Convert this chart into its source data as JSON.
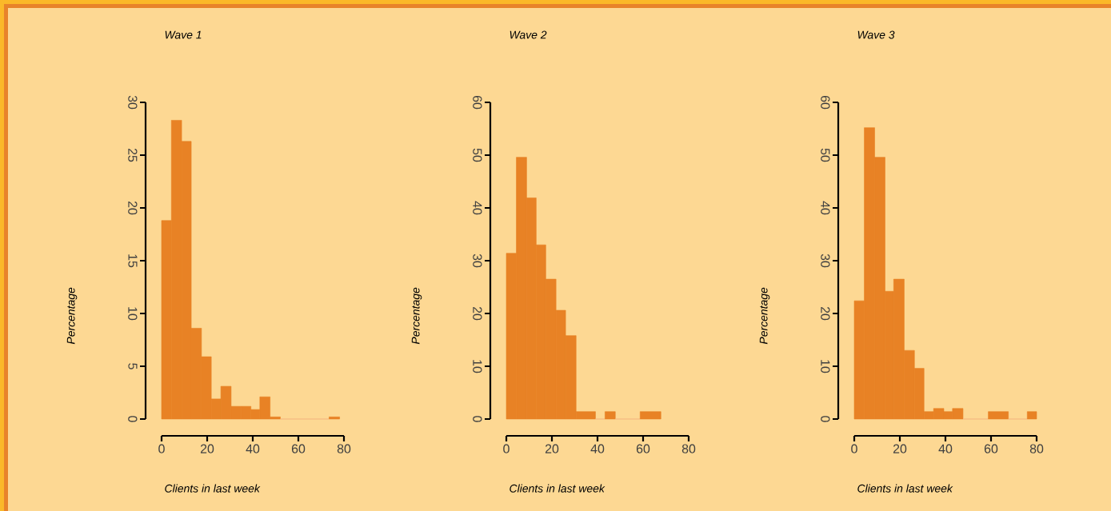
{
  "chart_data": [
    {
      "type": "histogram",
      "title": "Wave 1",
      "xlabel": "Clients in last week",
      "ylabel": "Percentage",
      "color": "#e88225",
      "bins": [
        0,
        4.3,
        8.8,
        13,
        17.5,
        21.8,
        26,
        30.5,
        35,
        39.2,
        43.1,
        47.6,
        52.1,
        73.5,
        78.1
      ],
      "values": [
        18.8,
        28.3,
        26.3,
        8.6,
        5.9,
        1.9,
        3.1,
        1.2,
        1.2,
        0.9,
        2.1,
        0.2,
        0,
        0.2
      ],
      "xlim": [
        0,
        80
      ],
      "xticks": [
        0,
        20,
        40,
        60,
        80
      ],
      "ylim": [
        0,
        30
      ],
      "yticks": [
        0,
        5,
        10,
        15,
        20,
        25,
        30
      ]
    },
    {
      "type": "histogram",
      "title": "Wave 2",
      "xlabel": "Clients in last week",
      "ylabel": "Percentage",
      "color": "#e88225",
      "bins": [
        0,
        4.4,
        8.9,
        13.1,
        17.3,
        21.8,
        26,
        30.6,
        39.1,
        43.3,
        47.8,
        58.7,
        67.8
      ],
      "values": [
        31.4,
        49.6,
        41.9,
        33.0,
        26.5,
        20.6,
        15.8,
        1.4,
        0,
        1.4,
        0,
        1.4
      ],
      "xlim": [
        0,
        80
      ],
      "xticks": [
        0,
        20,
        40,
        60,
        80
      ],
      "ylim": [
        0,
        60
      ],
      "yticks": [
        0,
        10,
        20,
        30,
        40,
        50,
        60
      ]
    },
    {
      "type": "histogram",
      "title": "Wave 3",
      "xlabel": "Clients in last week",
      "ylabel": "Percentage",
      "color": "#e88225",
      "bins": [
        0,
        4.4,
        8.95,
        13.5,
        17.3,
        21.9,
        26.4,
        30.6,
        34.8,
        39.3,
        43.1,
        47.7,
        58.8,
        67.6,
        75.9,
        80
      ],
      "values": [
        22.4,
        55.2,
        49.6,
        24.2,
        26.5,
        13.0,
        9.6,
        1.4,
        2.0,
        1.4,
        2.0,
        0,
        1.4,
        0,
        1.4
      ],
      "xlim": [
        0,
        80
      ],
      "xticks": [
        0,
        20,
        40,
        60,
        80
      ],
      "ylim": [
        0,
        60
      ],
      "yticks": [
        0,
        10,
        20,
        30,
        40,
        50,
        60
      ]
    }
  ]
}
